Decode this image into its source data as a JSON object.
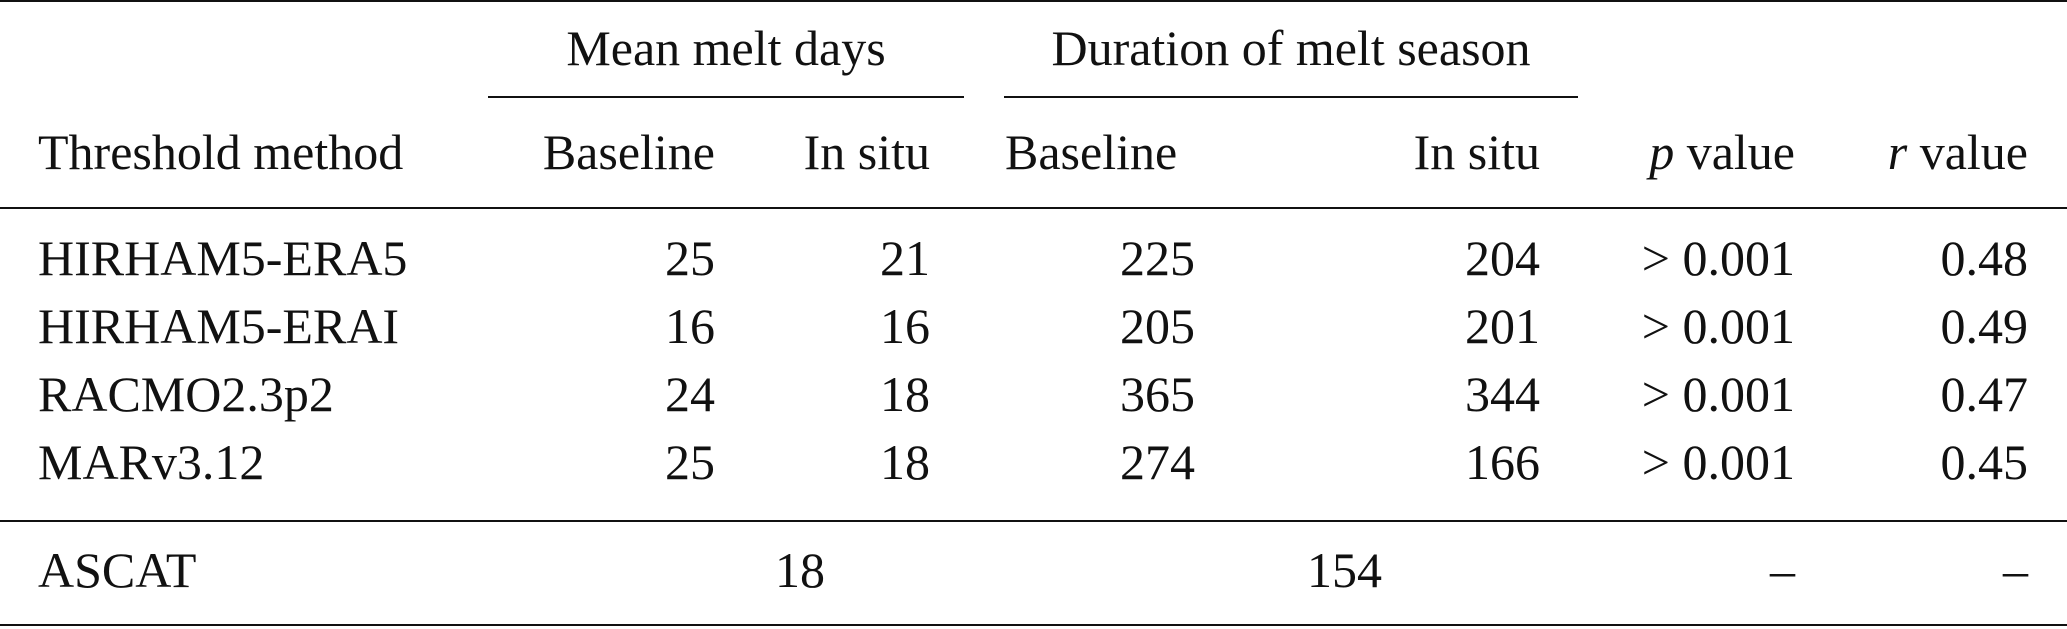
{
  "header": {
    "group_mean": "Mean melt days",
    "group_duration": "Duration of melt season",
    "col_method": "Threshold method",
    "col_mean_baseline": "Baseline",
    "col_mean_insitu": "In situ",
    "col_dur_baseline": "Baseline",
    "col_dur_insitu": "In situ",
    "col_p_symbol": "p",
    "col_p_word": "value",
    "col_r_symbol": "r",
    "col_r_word": "value"
  },
  "rows": [
    {
      "method": "HIRHAM5-ERA5",
      "mean_baseline": "25",
      "mean_insitu": "21",
      "dur_baseline": "225",
      "dur_insitu": "204",
      "p": "> 0.001",
      "r": "0.48"
    },
    {
      "method": "HIRHAM5-ERAI",
      "mean_baseline": "16",
      "mean_insitu": "16",
      "dur_baseline": "205",
      "dur_insitu": "201",
      "p": "> 0.001",
      "r": "0.49"
    },
    {
      "method": "RACMO2.3p2",
      "mean_baseline": "24",
      "mean_insitu": "18",
      "dur_baseline": "365",
      "dur_insitu": "344",
      "p": "> 0.001",
      "r": "0.47"
    },
    {
      "method": "MARv3.12",
      "mean_baseline": "25",
      "mean_insitu": "18",
      "dur_baseline": "274",
      "dur_insitu": "166",
      "p": "> 0.001",
      "r": "0.45"
    }
  ],
  "ascat": {
    "method": "ASCAT",
    "mean": "18",
    "duration": "154",
    "p": "–",
    "r": "–"
  }
}
